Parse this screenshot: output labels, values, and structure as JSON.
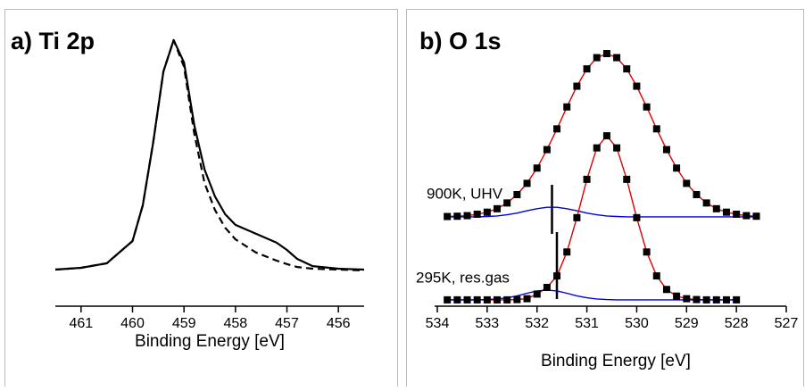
{
  "chart_data": [
    {
      "type": "line",
      "title": "a) Ti 2p",
      "xlabel": "Binding Energy [eV]",
      "x": [
        461.5,
        461,
        460.5,
        460,
        459.8,
        459.6,
        459.4,
        459.2,
        459.0,
        458.8,
        458.6,
        458.4,
        458.2,
        458,
        457.6,
        457.2,
        457,
        456.8,
        456.5,
        456,
        455.5
      ],
      "xlim": [
        461.5,
        455.5
      ],
      "xticks": [
        461,
        460,
        459,
        458,
        457,
        456
      ],
      "ylim": [
        0,
        100
      ],
      "series": [
        {
          "color": "#000000",
          "values": [
            12.7,
            13.3,
            14.9,
            22.6,
            35.0,
            56.7,
            81.4,
            92.3,
            84.5,
            62.8,
            47.4,
            38.1,
            31.9,
            28.2,
            25.1,
            22.0,
            19.5,
            16.4,
            13.9,
            13.0,
            12.7
          ]
        },
        {
          "color": "#000000",
          "dash": true,
          "values": [
            12.7,
            13.3,
            14.9,
            22.6,
            35.0,
            56.7,
            81.4,
            92.3,
            83.0,
            59.8,
            42.7,
            33.4,
            27.2,
            23.2,
            18.6,
            15.8,
            14.6,
            13.6,
            13.0,
            12.7,
            12.4
          ]
        }
      ]
    },
    {
      "type": "line",
      "title": "b) O 1s",
      "xlabel": "Binding Energy [eV]",
      "xlim": [
        534,
        527
      ],
      "xticks": [
        534,
        533,
        532,
        531,
        530,
        529,
        528,
        527
      ],
      "ylim": [
        0,
        100
      ],
      "annotations": [
        "900K, UHV",
        "295K, res.gas"
      ],
      "series": [
        {
          "color": "#e00000",
          "x": [
            533.8,
            533.6,
            533.4,
            533.2,
            533.0,
            532.8,
            532.6,
            532.4,
            532.2,
            532.0,
            531.8,
            531.6,
            531.4,
            531.2,
            531.0,
            530.8,
            530.6,
            530.4,
            530.2,
            530.0,
            529.8,
            529.6,
            529.4,
            529.2,
            529.0,
            528.8,
            528.6,
            528.4,
            528.2,
            528.0,
            527.8,
            527.6
          ],
          "values": [
            31.1,
            31.2,
            31.4,
            31.9,
            32.6,
            33.8,
            35.8,
            38.7,
            42.6,
            47.9,
            54.3,
            61.5,
            69.1,
            76.3,
            82.3,
            86.2,
            87.6,
            86.2,
            82.3,
            76.3,
            69.1,
            61.5,
            54.3,
            47.9,
            42.6,
            38.7,
            35.8,
            33.8,
            32.6,
            31.9,
            31.4,
            31.2
          ]
        },
        {
          "color": "#0000e0",
          "x": [
            533.8,
            533.6,
            533.4,
            533.2,
            533.0,
            532.8,
            532.6,
            532.4,
            532.2,
            532.0,
            531.8,
            531.6,
            531.4,
            531.2,
            531.0,
            530.8,
            530.6,
            530.4,
            530.2,
            530.0,
            529.8,
            529.6,
            529.4,
            529.2,
            529.0,
            528.8,
            528.6,
            528.4,
            528.2,
            528.0,
            527.8,
            527.6
          ],
          "values": [
            31.0,
            31.0,
            31.0,
            31.0,
            31.1,
            31.3,
            31.7,
            32.3,
            33.1,
            33.8,
            34.3,
            34.3,
            33.8,
            33.1,
            32.3,
            31.7,
            31.3,
            31.1,
            31.0,
            31.0,
            31.0,
            31.0,
            31.0,
            31.0,
            31.0,
            31.0,
            31.0,
            31.0,
            31.0,
            31.0,
            31.0,
            31.0
          ]
        },
        {
          "color": "#000000",
          "marker": "square",
          "x": [
            533.8,
            533.6,
            533.4,
            533.2,
            533.0,
            532.8,
            532.6,
            532.4,
            532.2,
            532.0,
            531.8,
            531.6,
            531.4,
            531.2,
            531.0,
            530.8,
            530.6,
            530.4,
            530.2,
            530.0,
            529.8,
            529.6,
            529.4,
            529.2,
            529.0,
            528.8,
            528.6,
            528.4,
            528.2,
            528.0,
            527.8,
            527.6
          ],
          "values": [
            31.1,
            31.2,
            31.4,
            31.9,
            32.6,
            33.8,
            35.8,
            38.7,
            42.6,
            47.9,
            54.3,
            61.5,
            69.1,
            76.3,
            82.3,
            86.2,
            87.6,
            86.2,
            82.3,
            76.3,
            69.1,
            61.5,
            54.3,
            47.9,
            42.6,
            38.7,
            35.8,
            33.8,
            32.6,
            31.9,
            31.4,
            31.2
          ]
        },
        {
          "color": "#e00000",
          "x": [
            533.8,
            533.6,
            533.4,
            533.2,
            533.0,
            532.8,
            532.6,
            532.4,
            532.2,
            532.0,
            531.8,
            531.6,
            531.4,
            531.2,
            531.0,
            530.8,
            530.6,
            530.4,
            530.2,
            530.0,
            529.8,
            529.6,
            529.4,
            529.2,
            529.0,
            528.8,
            528.6,
            528.4,
            528.2,
            528.0
          ],
          "values": [
            2.2,
            2.2,
            2.2,
            2.2,
            2.2,
            2.2,
            2.2,
            2.3,
            2.6,
            4.2,
            6.5,
            10.5,
            18.8,
            30.7,
            44.0,
            54.9,
            59.1,
            54.9,
            44.0,
            30.7,
            18.8,
            10.5,
            5.8,
            3.5,
            2.6,
            2.3,
            2.2,
            2.2,
            2.2,
            2.2
          ]
        },
        {
          "color": "#0000e0",
          "x": [
            533.8,
            533.6,
            533.4,
            533.2,
            533.0,
            532.8,
            532.6,
            532.4,
            532.2,
            532.0,
            531.8,
            531.6,
            531.4,
            531.2,
            531.0,
            530.8,
            530.6,
            530.4,
            530.2,
            530.0,
            529.8,
            529.6,
            529.4,
            529.2,
            529.0,
            528.8,
            528.6,
            528.4,
            528.2,
            528.0
          ],
          "values": [
            2.2,
            2.2,
            2.2,
            2.2,
            2.3,
            2.5,
            2.9,
            3.6,
            4.5,
            5.3,
            5.6,
            5.3,
            4.5,
            3.6,
            2.9,
            2.5,
            2.3,
            2.2,
            2.2,
            2.2,
            2.2,
            2.2,
            2.2,
            2.2,
            2.2,
            2.2,
            2.2,
            2.2,
            2.2,
            2.2
          ]
        },
        {
          "color": "#000000",
          "marker": "square",
          "x": [
            533.8,
            533.6,
            533.4,
            533.2,
            533.0,
            532.8,
            532.6,
            532.4,
            532.2,
            532.0,
            531.8,
            531.6,
            531.4,
            531.2,
            531.0,
            530.8,
            530.6,
            530.4,
            530.2,
            530.0,
            529.8,
            529.6,
            529.4,
            529.2,
            529.0,
            528.8,
            528.6,
            528.4,
            528.2,
            528.0
          ],
          "values": [
            2.2,
            2.2,
            2.2,
            2.2,
            2.2,
            2.2,
            2.2,
            2.3,
            2.6,
            4.2,
            6.5,
            10.5,
            18.8,
            30.7,
            44.0,
            54.9,
            59.1,
            54.9,
            44.0,
            30.7,
            18.8,
            10.5,
            5.8,
            3.5,
            2.6,
            2.3,
            2.2,
            2.2,
            2.2,
            2.2
          ]
        }
      ]
    }
  ]
}
